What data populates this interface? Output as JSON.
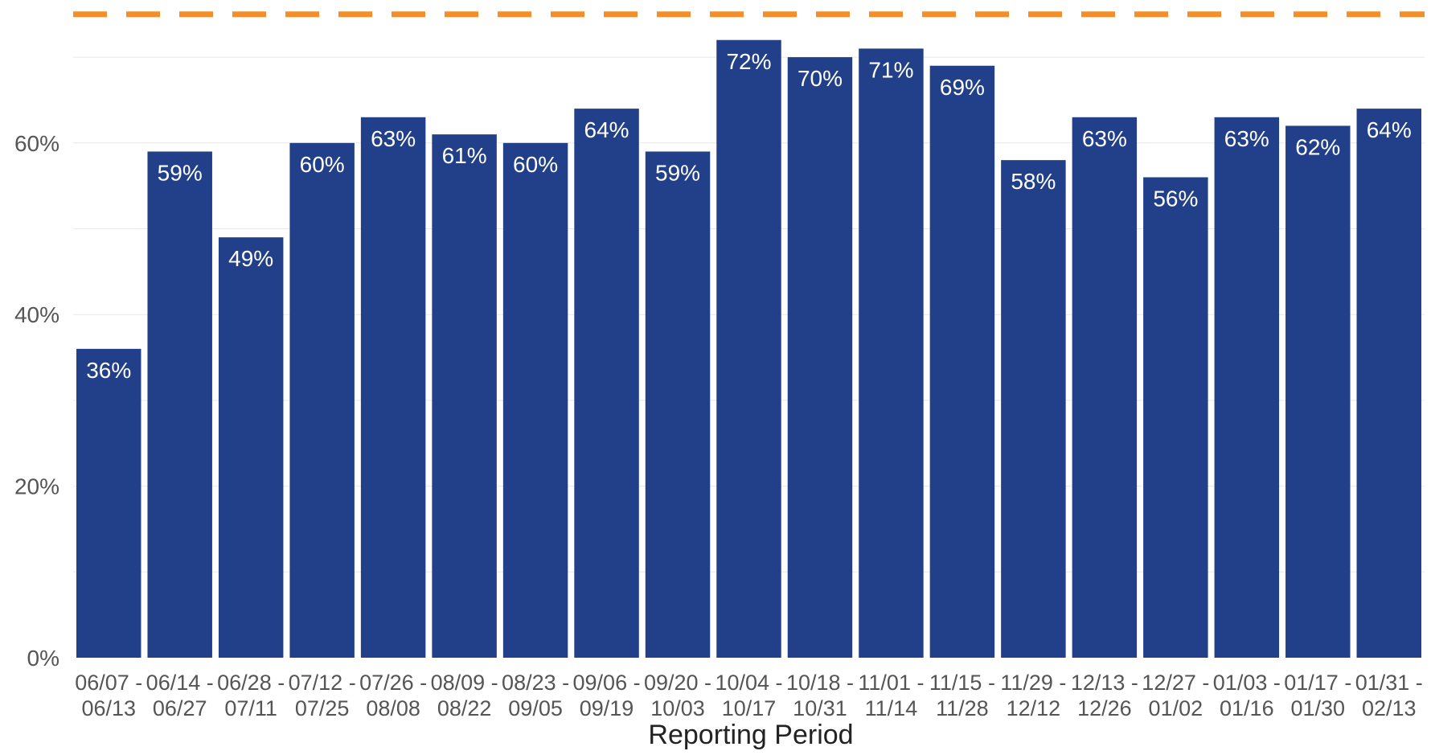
{
  "chart_data": {
    "type": "bar",
    "title": "",
    "xlabel": "Reporting Period",
    "ylabel": "",
    "categories": [
      [
        "06/07 -",
        "06/13"
      ],
      [
        "06/14 -",
        "06/27"
      ],
      [
        "06/28 -",
        "07/11"
      ],
      [
        "07/12 -",
        "07/25"
      ],
      [
        "07/26 -",
        "08/08"
      ],
      [
        "08/09 -",
        "08/22"
      ],
      [
        "08/23 -",
        "09/05"
      ],
      [
        "09/06 -",
        "09/19"
      ],
      [
        "09/20 -",
        "10/03"
      ],
      [
        "10/04 -",
        "10/17"
      ],
      [
        "10/18 -",
        "10/31"
      ],
      [
        "11/01 -",
        "11/14"
      ],
      [
        "11/15 -",
        "11/28"
      ],
      [
        "11/29 -",
        "12/12"
      ],
      [
        "12/13 -",
        "12/26"
      ],
      [
        "12/27 -",
        "01/02"
      ],
      [
        "01/03 -",
        "01/16"
      ],
      [
        "01/17 -",
        "01/30"
      ],
      [
        "01/31 -",
        "02/13"
      ]
    ],
    "values": [
      36,
      59,
      49,
      60,
      63,
      61,
      60,
      64,
      59,
      72,
      70,
      71,
      69,
      58,
      63,
      56,
      63,
      62,
      64
    ],
    "data_labels": [
      "36%",
      "59%",
      "49%",
      "60%",
      "63%",
      "61%",
      "60%",
      "64%",
      "59%",
      "72%",
      "70%",
      "71%",
      "69%",
      "58%",
      "63%",
      "56%",
      "63%",
      "62%",
      "64%"
    ],
    "ylim": [
      0,
      75
    ],
    "yticks": [
      0,
      20,
      40,
      60
    ],
    "ytick_labels": [
      "0%",
      "20%",
      "40%",
      "60%"
    ],
    "minor_gridlines": [
      10,
      30,
      50,
      70
    ],
    "grid": true,
    "reference_line": {
      "value": 75,
      "style": "dashed",
      "color": "#F28E2B"
    },
    "colors": {
      "bar": "#22408A",
      "bar_label": "#FFFFFF",
      "grid": "#E8E8E8",
      "tick_label": "#555555",
      "axis_title": "#222222"
    }
  }
}
